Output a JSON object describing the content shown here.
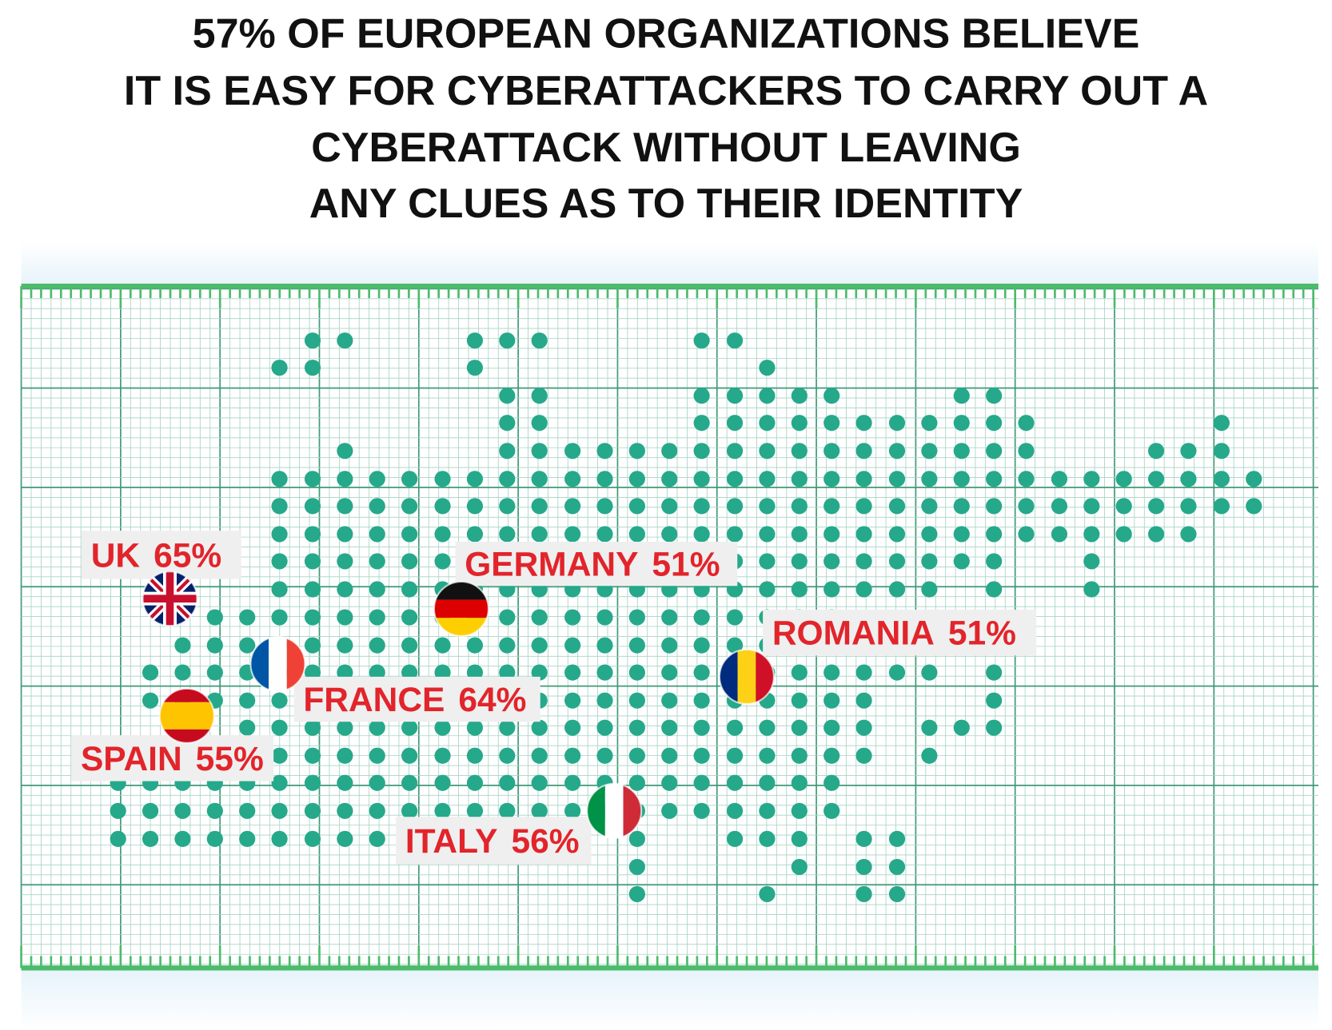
{
  "title_lines": [
    "57% OF EUROPEAN ORGANIZATIONS BELIEVE",
    "IT IS EASY FOR CYBERATTACKERS TO CARRY OUT A",
    "CYBERATTACK WITHOUT LEAVING",
    "ANY CLUES AS TO THEIR IDENTITY"
  ],
  "countries": [
    {
      "name": "UK",
      "percent": "65%"
    },
    {
      "name": "GERMANY",
      "percent": "51%"
    },
    {
      "name": "ROMANIA",
      "percent": "51%"
    },
    {
      "name": "FRANCE",
      "percent": "64%"
    },
    {
      "name": "SPAIN",
      "percent": "55%"
    },
    {
      "name": "ITALY",
      "percent": "56%"
    }
  ]
}
